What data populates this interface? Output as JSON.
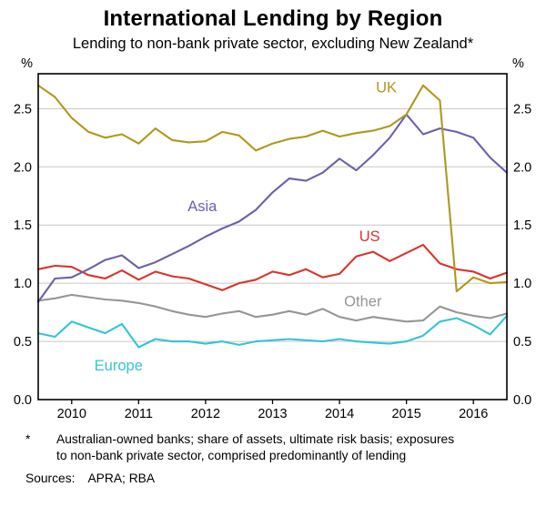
{
  "page": {
    "title": "International Lending by Region",
    "subtitle": "Lending to non-bank private sector, excluding New Zealand*"
  },
  "chart_data": {
    "type": "line",
    "title": "International Lending by Region",
    "subtitle": "Lending to non-bank private sector, excluding New Zealand*",
    "unit_left": "%",
    "unit_right": "%",
    "ylim": [
      0,
      2.8
    ],
    "yticks": [
      0.0,
      0.5,
      1.0,
      1.5,
      2.0,
      2.5
    ],
    "xlim": [
      2009.5,
      2016.5
    ],
    "xticks": [
      2010,
      2011,
      2012,
      2013,
      2014,
      2015,
      2016
    ],
    "grid": true,
    "axis_color": "#000000",
    "grid_color": "#c6c6c6",
    "x": [
      2009.5,
      2009.75,
      2010.0,
      2010.25,
      2010.5,
      2010.75,
      2011.0,
      2011.25,
      2011.5,
      2011.75,
      2012.0,
      2012.25,
      2012.5,
      2012.75,
      2013.0,
      2013.25,
      2013.5,
      2013.75,
      2014.0,
      2014.25,
      2014.5,
      2014.75,
      2015.0,
      2015.25,
      2015.5,
      2015.75,
      2016.0,
      2016.25,
      2016.5
    ],
    "series": [
      {
        "name": "Other",
        "color": "#969696",
        "label_pos": [
          2014.35,
          0.84
        ],
        "values": [
          0.85,
          0.87,
          0.9,
          0.88,
          0.86,
          0.85,
          0.83,
          0.8,
          0.76,
          0.73,
          0.71,
          0.74,
          0.76,
          0.71,
          0.73,
          0.76,
          0.73,
          0.78,
          0.71,
          0.68,
          0.71,
          0.69,
          0.67,
          0.68,
          0.8,
          0.75,
          0.72,
          0.7,
          0.74
        ]
      },
      {
        "name": "Europe",
        "color": "#35c4d4",
        "label_pos": [
          2010.7,
          0.29
        ],
        "values": [
          0.57,
          0.54,
          0.67,
          0.62,
          0.57,
          0.65,
          0.45,
          0.52,
          0.5,
          0.5,
          0.48,
          0.5,
          0.47,
          0.5,
          0.51,
          0.52,
          0.51,
          0.5,
          0.52,
          0.5,
          0.49,
          0.48,
          0.5,
          0.55,
          0.67,
          0.7,
          0.64,
          0.56,
          0.72
        ]
      },
      {
        "name": "US",
        "color": "#d9342b",
        "label_pos": [
          2014.45,
          1.4
        ],
        "values": [
          1.12,
          1.15,
          1.14,
          1.07,
          1.04,
          1.11,
          1.03,
          1.1,
          1.06,
          1.04,
          0.99,
          0.94,
          1.0,
          1.03,
          1.1,
          1.07,
          1.12,
          1.05,
          1.08,
          1.23,
          1.27,
          1.19,
          1.26,
          1.33,
          1.17,
          1.12,
          1.1,
          1.04,
          1.09
        ]
      },
      {
        "name": "Asia",
        "color": "#6d5fad",
        "label_pos": [
          2011.95,
          1.66
        ],
        "values": [
          0.84,
          1.04,
          1.05,
          1.12,
          1.2,
          1.24,
          1.13,
          1.18,
          1.25,
          1.32,
          1.4,
          1.47,
          1.53,
          1.63,
          1.78,
          1.9,
          1.88,
          1.95,
          2.07,
          1.97,
          2.1,
          2.25,
          2.45,
          2.28,
          2.33,
          2.3,
          2.25,
          2.08,
          1.95
        ]
      },
      {
        "name": "UK",
        "color": "#b0981c",
        "label_pos": [
          2014.7,
          2.68
        ],
        "values": [
          2.7,
          2.6,
          2.42,
          2.3,
          2.25,
          2.28,
          2.2,
          2.33,
          2.23,
          2.21,
          2.22,
          2.3,
          2.27,
          2.14,
          2.2,
          2.24,
          2.26,
          2.31,
          2.26,
          2.29,
          2.31,
          2.35,
          2.45,
          2.7,
          2.57,
          0.93,
          1.05,
          1.0,
          1.01
        ]
      }
    ]
  },
  "footnote": {
    "marker": "*",
    "line1": "Australian-owned banks; share of assets, ultimate risk basis; exposures",
    "line2": "to non-bank private sector, comprised predominantly of lending"
  },
  "sources": {
    "label": "Sources:",
    "value": "APRA; RBA"
  }
}
